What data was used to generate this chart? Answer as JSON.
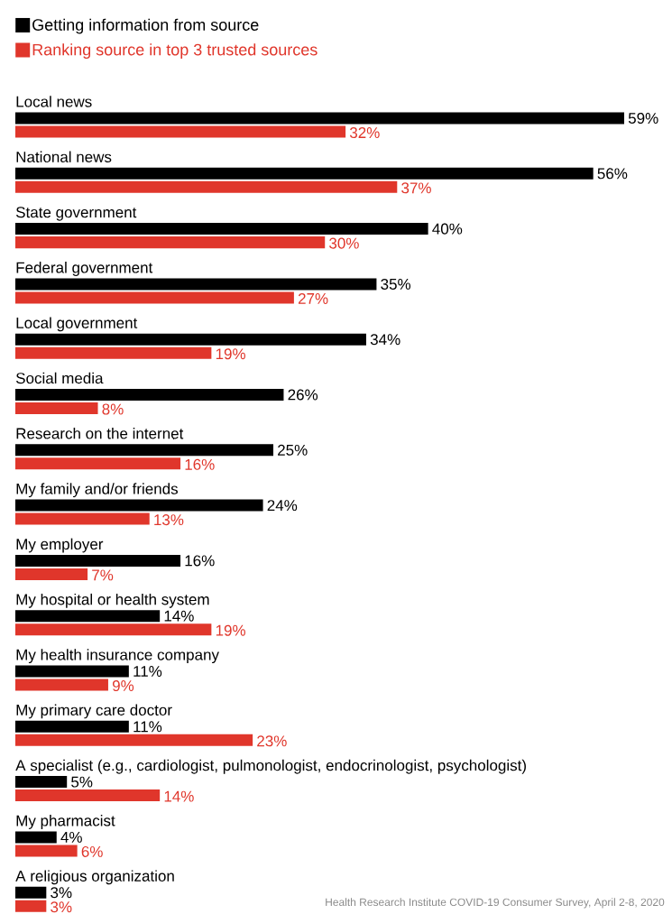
{
  "chart_data": {
    "type": "bar",
    "orientation": "horizontal",
    "legend": "top left",
    "categories": [
      "Local news",
      "National news",
      "State government",
      "Federal government",
      "Local government",
      "Social media",
      "Research on the internet",
      "My family and/or friends",
      "My employer",
      "My hospital or health system",
      "My health insurance company",
      "My primary care doctor",
      "A specialist (e.g., cardiologist, pulmonologist, endocrinologist, psychologist)",
      "My pharmacist",
      "A religious organization"
    ],
    "series": [
      {
        "name": "Getting information from source",
        "color": "#000000",
        "values": [
          59,
          56,
          40,
          35,
          34,
          26,
          25,
          24,
          16,
          14,
          11,
          11,
          5,
          4,
          3
        ],
        "value_labels": [
          "59%",
          "56%",
          "40%",
          "35%",
          "34%",
          "26%",
          "25%",
          "24%",
          "16%",
          "14%",
          "11%",
          "11%",
          "5%",
          "4%",
          "3%"
        ]
      },
      {
        "name": "Ranking source in top 3 trusted sources",
        "color": "#e0362b",
        "values": [
          32,
          37,
          30,
          27,
          19,
          8,
          16,
          13,
          7,
          19,
          9,
          23,
          14,
          6,
          3
        ],
        "value_labels": [
          "32%",
          "37%",
          "30%",
          "27%",
          "19%",
          "8%",
          "16%",
          "13%",
          "7%",
          "19%",
          "9%",
          "23%",
          "14%",
          "6%",
          "3%"
        ]
      }
    ],
    "annotations": [
      "Health Research Institute COVID-19 Consumer Survey, April 2-8, 2020"
    ]
  }
}
